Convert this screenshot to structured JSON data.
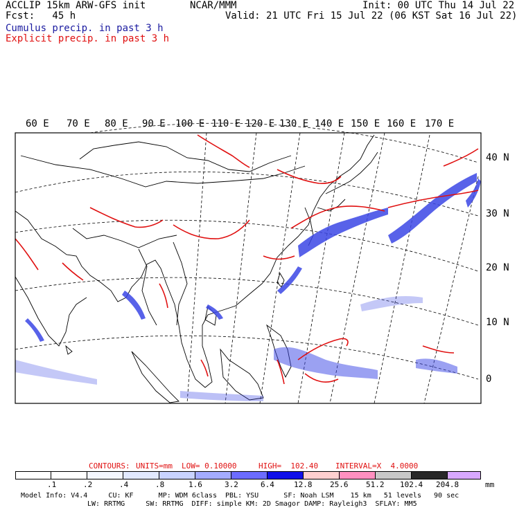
{
  "header": {
    "left1": "ACCLIP 15km ARW-GFS init",
    "left2": "Fcst:   45 h",
    "center": "NCAR/MMM",
    "right1": "Init: 00 UTC Thu 14 Jul 22",
    "right2": "Valid: 21 UTC Fri 15 Jul 22 (06 KST Sat 16 Jul 22)",
    "legend_cumulus": "Cumulus precip. in past 3 h",
    "legend_explicit": "Explicit precip. in past 3 h"
  },
  "map": {
    "lon_labels": [
      "60 E",
      "70 E",
      "80 E",
      "90 E",
      "100 E",
      "110 E",
      "120 E",
      "130 E",
      "140 E",
      "150 E",
      "160 E",
      "170 E"
    ],
    "lat_labels": [
      "40 N",
      "30 N",
      "20 N",
      "10 N",
      "0"
    ]
  },
  "contours": {
    "contours_label": "CONTOURS:",
    "units": "UNITS=mm",
    "low": "LOW= 0.10000",
    "high": "HIGH=  102.40",
    "interval": "INTERVAL=X  4.0000"
  },
  "colorbar": {
    "ticks": [
      ".1",
      ".2",
      ".4",
      ".8",
      "1.6",
      "3.2",
      "6.4",
      "12.8",
      "25.6",
      "51.2",
      "102.4",
      "204.8"
    ],
    "units": "mm",
    "colors": [
      "#ffffff",
      "#ffffff",
      "#f4f7ff",
      "#e2e9ff",
      "#c9d3ff",
      "#a4acff",
      "#6c6cff",
      "#1010e8",
      "#ffd0d0",
      "#ff90c0",
      "#c8c8c8",
      "#282828",
      "#d8a8ff"
    ]
  },
  "footer": {
    "line1": "Model Info: V4.4     CU: KF      MP: WDM 6class  PBL: YSU      SF: Noah LSM    15 km   51 levels   90 sec",
    "line2": "LW: RRTMG     SW: RRTMG  DIFF: simple KM: 2D Smagor DAMP: Rayleigh3  SFLAY: MM5"
  }
}
